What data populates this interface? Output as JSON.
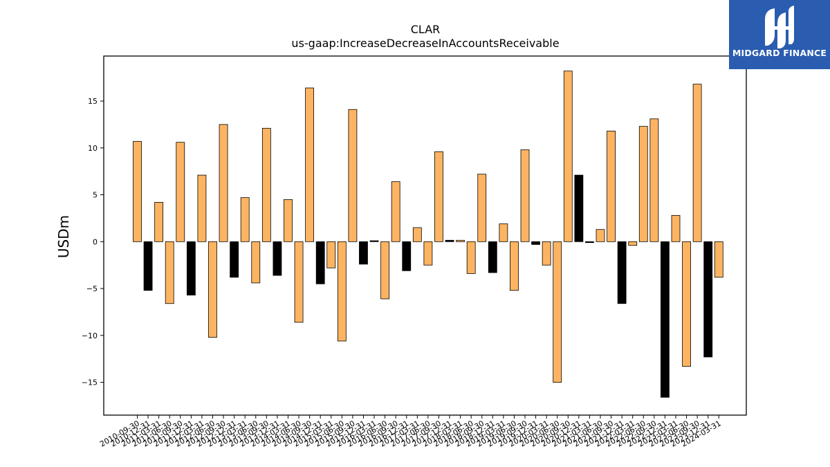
{
  "brand": {
    "name": "MIDGARD FINANCE",
    "background": "#2a5db0"
  },
  "chart_data": {
    "type": "bar",
    "title": "CLAR",
    "subtitle": "us-gaap:IncreaseDecreaseInAccountsReceivable",
    "ylabel": "USDm",
    "xlabel": "",
    "ylim": [
      -18.5,
      19.8
    ],
    "yticks": [
      -15,
      -10,
      -5,
      0,
      5,
      10,
      15
    ],
    "ytick_labels": [
      "−15",
      "−10",
      "−5",
      "0",
      "5",
      "10",
      "15"
    ],
    "grid": false,
    "legend": "none",
    "colors": {
      "default": "#fdb462",
      "highlight": "#000000",
      "edge": "#000000"
    },
    "categories": [
      "2010-09-30",
      "2010-12-31",
      "2011-03-31",
      "2011-06-30",
      "2011-09-30",
      "2011-12-31",
      "2012-03-31",
      "2012-06-30",
      "2012-09-30",
      "2012-12-31",
      "2013-03-31",
      "2013-06-30",
      "2013-09-30",
      "2013-12-31",
      "2014-03-31",
      "2014-06-30",
      "2014-09-30",
      "2014-12-31",
      "2015-03-31",
      "2015-06-30",
      "2015-09-30",
      "2015-12-31",
      "2016-03-31",
      "2016-06-30",
      "2016-09-30",
      "2016-12-31",
      "2017-03-31",
      "2017-06-30",
      "2017-09-30",
      "2017-12-31",
      "2018-03-31",
      "2018-06-30",
      "2018-09-30",
      "2018-12-31",
      "2019-03-31",
      "2019-06-30",
      "2019-09-30",
      "2019-12-31",
      "2020-03-31",
      "2020-06-30",
      "2020-09-30",
      "2020-12-31",
      "2021-03-31",
      "2021-06-30",
      "2021-09-30",
      "2021-12-31",
      "2022-03-31",
      "2022-06-30",
      "2022-09-30",
      "2022-12-31",
      "2023-03-31",
      "2023-06-30",
      "2023-09-30",
      "2023-12-31",
      "2024-03-31"
    ],
    "values": [
      10.7,
      -5.2,
      4.2,
      -6.6,
      10.6,
      -5.7,
      7.1,
      -10.2,
      12.5,
      -3.8,
      4.7,
      -4.4,
      12.1,
      -3.6,
      4.5,
      -8.6,
      16.4,
      -4.5,
      -2.8,
      -10.6,
      14.1,
      -2.4,
      0.1,
      -6.1,
      6.4,
      -3.1,
      1.5,
      -2.5,
      9.6,
      0.15,
      0.15,
      -3.4,
      7.2,
      -3.3,
      1.9,
      -5.2,
      9.8,
      -0.3,
      -2.5,
      -15.0,
      18.2,
      7.1,
      -0.1,
      1.3,
      11.8,
      -6.6,
      -0.4,
      12.3,
      13.1,
      -16.6,
      2.8,
      -13.3,
      16.8,
      -12.3,
      -3.8
    ],
    "highlight": [
      false,
      true,
      false,
      false,
      false,
      true,
      false,
      false,
      false,
      true,
      false,
      false,
      false,
      true,
      false,
      false,
      false,
      true,
      false,
      false,
      false,
      true,
      true,
      false,
      false,
      true,
      false,
      false,
      false,
      true,
      false,
      false,
      false,
      true,
      false,
      false,
      false,
      true,
      false,
      false,
      false,
      true,
      true,
      false,
      false,
      true,
      false,
      false,
      false,
      true,
      false,
      false,
      false,
      true,
      false
    ]
  }
}
